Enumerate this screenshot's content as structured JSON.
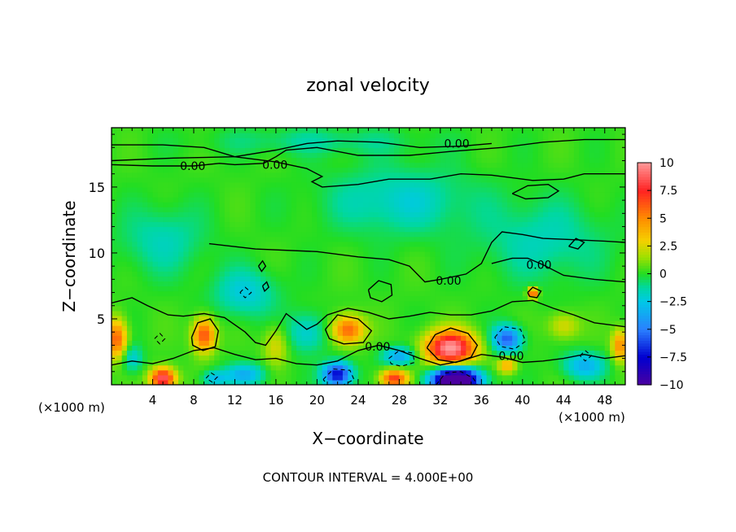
{
  "chart_data": {
    "type": "heatmap",
    "title": "zonal velocity",
    "xlabel": "X−coordinate",
    "ylabel": "Z−coordinate",
    "x_unit_left": "(×1000 m)",
    "x_unit_right": "(×1000 m)",
    "xlim": [
      0,
      50
    ],
    "ylim": [
      0,
      19.5
    ],
    "x_ticks": [
      4,
      8,
      12,
      16,
      20,
      24,
      28,
      32,
      36,
      40,
      44,
      48
    ],
    "y_ticks": [
      5,
      10,
      15
    ],
    "colorbar": {
      "range": [
        -10,
        10
      ],
      "ticks": [
        10,
        7.5,
        5,
        2.5,
        0,
        -2.5,
        -5,
        -7.5,
        -10
      ],
      "tick_labels": [
        "10",
        "7.5",
        "5",
        "2.5",
        "0",
        "−2.5",
        "−5",
        "−7.5",
        "−10"
      ],
      "colors": [
        "#ff9999",
        "#ff2222",
        "#ff7f00",
        "#f5d000",
        "#9ee000",
        "#22dd22",
        "#00d8a0",
        "#00c8e8",
        "#2a80ff",
        "#0000d0",
        "#4b00a0"
      ]
    },
    "contour_interval_label": "CONTOUR INTERVAL =  4.000E+00",
    "contour_labels": [
      "0.00",
      "0.00",
      "0.00",
      "0.00",
      "0.00",
      "0.00",
      "0.00"
    ],
    "background_value": 0.2,
    "features": [
      {
        "x": 33,
        "z": 2.8,
        "value": 10,
        "sx": 2.4,
        "sz": 1.3
      },
      {
        "x": 33.5,
        "z": 0.4,
        "value": -15,
        "sx": 2.2,
        "sz": 0.9
      },
      {
        "x": 23,
        "z": 4.2,
        "value": 6,
        "sx": 1.6,
        "sz": 1.1
      },
      {
        "x": 9,
        "z": 3.8,
        "value": 6.5,
        "sx": 1.1,
        "sz": 1.3
      },
      {
        "x": 5,
        "z": 0.5,
        "value": 9,
        "sx": 1.2,
        "sz": 0.8
      },
      {
        "x": 0.5,
        "z": 3.5,
        "value": 6,
        "sx": 1.0,
        "sz": 1.5
      },
      {
        "x": 27.5,
        "z": 0.5,
        "value": 7,
        "sx": 1.3,
        "sz": 0.7
      },
      {
        "x": 22,
        "z": 0.8,
        "value": -8,
        "sx": 1.4,
        "sz": 0.9
      },
      {
        "x": 38.5,
        "z": 3.5,
        "value": -6,
        "sx": 1.4,
        "sz": 1.0
      },
      {
        "x": 28,
        "z": 2.2,
        "value": -4,
        "sx": 1.6,
        "sz": 0.7
      },
      {
        "x": 41,
        "z": 7,
        "value": 7,
        "sx": 0.5,
        "sz": 0.4
      },
      {
        "x": 49.5,
        "z": 3,
        "value": 5,
        "sx": 0.8,
        "sz": 1.2
      },
      {
        "x": 13,
        "z": 0.8,
        "value": -3.5,
        "sx": 2.0,
        "sz": 0.8
      },
      {
        "x": 46,
        "z": 1.5,
        "value": -3.5,
        "sx": 2.0,
        "sz": 1.0
      },
      {
        "x": 10,
        "z": 0.5,
        "value": -3,
        "sx": 1.2,
        "sz": 0.6
      },
      {
        "x": 19,
        "z": 4,
        "value": -2.5,
        "sx": 2.0,
        "sz": 1.5
      },
      {
        "x": 13,
        "z": 7,
        "value": -2.5,
        "sx": 3.0,
        "sz": 1.8
      },
      {
        "x": 5,
        "z": 11,
        "value": -1.8,
        "sx": 4.0,
        "sz": 2.5
      },
      {
        "x": 28,
        "z": 14,
        "value": -2.2,
        "sx": 7.0,
        "sz": 2.5
      },
      {
        "x": 42,
        "z": 11,
        "value": -1.8,
        "sx": 6.0,
        "sz": 3.0
      },
      {
        "x": 20,
        "z": 18.5,
        "value": -1.3,
        "sx": 10.0,
        "sz": 1.0
      },
      {
        "x": 2,
        "z": 2,
        "value": -2.5,
        "sx": 1.0,
        "sz": 1.0
      },
      {
        "x": 38.5,
        "z": 1.5,
        "value": 4,
        "sx": 0.9,
        "sz": 0.6
      },
      {
        "x": 16,
        "z": 3,
        "value": 2.5,
        "sx": 1.2,
        "sz": 1.5
      },
      {
        "x": 44,
        "z": 4.5,
        "value": 2.5,
        "sx": 1.5,
        "sz": 1.0
      }
    ],
    "zero_contours": [
      [
        [
          0,
          16.7
        ],
        [
          4,
          16.6
        ],
        [
          8,
          16.6
        ],
        [
          10.5,
          16.8
        ],
        [
          12,
          16.7
        ],
        [
          14.8,
          16.8
        ],
        [
          16,
          17.3
        ],
        [
          17,
          17.8
        ],
        [
          20,
          18.0
        ],
        [
          24,
          17.4
        ],
        [
          29,
          17.4
        ],
        [
          33,
          17.7
        ],
        [
          38,
          18.0
        ],
        [
          42,
          18.4
        ],
        [
          46,
          18.6
        ],
        [
          50,
          18.6
        ]
      ],
      [
        [
          0,
          18.2
        ],
        [
          5,
          18.2
        ],
        [
          9,
          18.0
        ],
        [
          12,
          17.3
        ],
        [
          16,
          16.9
        ],
        [
          19,
          16.4
        ],
        [
          20.5,
          15.8
        ],
        [
          19.5,
          15.4
        ],
        [
          20.5,
          15.0
        ],
        [
          24,
          15.2
        ],
        [
          27,
          15.6
        ],
        [
          31,
          15.6
        ],
        [
          34,
          16.0
        ],
        [
          37,
          15.9
        ],
        [
          41,
          15.5
        ],
        [
          44,
          15.6
        ],
        [
          46,
          16.0
        ],
        [
          50,
          16.0
        ]
      ],
      [
        [
          0,
          17.0
        ],
        [
          6,
          17.2
        ],
        [
          12,
          17.3
        ],
        [
          16,
          17.8
        ],
        [
          19,
          18.3
        ],
        [
          22,
          18.5
        ],
        [
          26,
          18.4
        ],
        [
          30,
          18.0
        ],
        [
          34,
          18.1
        ],
        [
          37,
          18.3
        ]
      ],
      [
        [
          9.5,
          10.7
        ],
        [
          14,
          10.3
        ],
        [
          20,
          10.1
        ],
        [
          24,
          9.7
        ],
        [
          27,
          9.5
        ],
        [
          29,
          9.0
        ],
        [
          30,
          8.2
        ],
        [
          30.5,
          7.8
        ],
        [
          32,
          8.0
        ],
        [
          34.5,
          8.4
        ],
        [
          36,
          9.2
        ],
        [
          37,
          10.8
        ],
        [
          38,
          11.6
        ],
        [
          40,
          11.4
        ],
        [
          42,
          11.1
        ],
        [
          45,
          11.0
        ],
        [
          48,
          10.9
        ],
        [
          50,
          10.8
        ]
      ],
      [
        [
          37,
          9.2
        ],
        [
          39,
          9.6
        ],
        [
          40.5,
          9.6
        ],
        [
          42,
          9.1
        ],
        [
          44,
          8.3
        ],
        [
          47,
          8.0
        ],
        [
          50,
          7.8
        ]
      ],
      [
        [
          0,
          6.2
        ],
        [
          2,
          6.6
        ],
        [
          3.5,
          6.0
        ],
        [
          5.5,
          5.3
        ],
        [
          7,
          5.2
        ],
        [
          9,
          5.4
        ],
        [
          11,
          5.1
        ],
        [
          13,
          4.0
        ],
        [
          14,
          3.2
        ],
        [
          15,
          3.0
        ],
        [
          16,
          4.1
        ],
        [
          17,
          5.4
        ],
        [
          18,
          4.8
        ],
        [
          19,
          4.2
        ],
        [
          20,
          4.6
        ],
        [
          21,
          5.3
        ],
        [
          23,
          5.8
        ],
        [
          25,
          5.5
        ],
        [
          27,
          5.0
        ],
        [
          29,
          5.2
        ],
        [
          31,
          5.5
        ],
        [
          33,
          5.3
        ],
        [
          35,
          5.3
        ],
        [
          37,
          5.6
        ],
        [
          39,
          6.3
        ],
        [
          41,
          6.4
        ],
        [
          43,
          5.8
        ],
        [
          45,
          5.3
        ],
        [
          47,
          4.7
        ],
        [
          50,
          4.4
        ]
      ],
      [
        [
          0,
          1.5
        ],
        [
          2,
          1.8
        ],
        [
          4,
          1.6
        ],
        [
          6,
          2.0
        ],
        [
          8,
          2.6
        ],
        [
          10,
          2.8
        ],
        [
          12,
          2.3
        ],
        [
          14,
          1.9
        ],
        [
          16,
          2.0
        ],
        [
          18,
          1.6
        ],
        [
          20,
          1.5
        ],
        [
          22,
          1.8
        ],
        [
          24,
          2.6
        ],
        [
          26,
          3.0
        ],
        [
          28,
          2.6
        ],
        [
          30,
          2.0
        ],
        [
          32,
          1.5
        ],
        [
          34,
          1.8
        ],
        [
          36,
          2.3
        ],
        [
          38,
          2.1
        ],
        [
          40,
          1.7
        ],
        [
          42,
          1.8
        ],
        [
          44,
          2.0
        ],
        [
          46,
          2.3
        ],
        [
          48,
          2.0
        ],
        [
          50,
          2.2
        ]
      ],
      [
        [
          30.7,
          2.8
        ],
        [
          31.5,
          3.8
        ],
        [
          33,
          4.3
        ],
        [
          34.7,
          3.9
        ],
        [
          35.6,
          3.0
        ],
        [
          35,
          2.1
        ],
        [
          33.5,
          1.7
        ],
        [
          31.8,
          1.9
        ],
        [
          30.7,
          2.8
        ]
      ],
      [
        [
          20.8,
          4.2
        ],
        [
          22,
          5.3
        ],
        [
          24,
          5.0
        ],
        [
          25.3,
          4.1
        ],
        [
          24.5,
          3.2
        ],
        [
          22.6,
          3.1
        ],
        [
          21.2,
          3.5
        ],
        [
          20.8,
          4.2
        ]
      ],
      [
        [
          7.8,
          3.6
        ],
        [
          8.4,
          4.7
        ],
        [
          9.6,
          5.0
        ],
        [
          10.4,
          4.1
        ],
        [
          10.1,
          2.9
        ],
        [
          8.9,
          2.6
        ],
        [
          7.9,
          3.0
        ],
        [
          7.8,
          3.6
        ]
      ],
      [
        [
          25,
          7.2
        ],
        [
          26,
          7.9
        ],
        [
          27.2,
          7.6
        ],
        [
          27.3,
          6.8
        ],
        [
          26.3,
          6.3
        ],
        [
          25.2,
          6.6
        ],
        [
          25,
          7.2
        ]
      ],
      [
        [
          40.5,
          7.0
        ],
        [
          41,
          7.4
        ],
        [
          41.8,
          7.1
        ],
        [
          41.4,
          6.6
        ],
        [
          40.7,
          6.7
        ],
        [
          40.5,
          7.0
        ]
      ],
      [
        [
          39,
          14.5
        ],
        [
          40.5,
          15.1
        ],
        [
          42.5,
          15.2
        ],
        [
          43.5,
          14.7
        ],
        [
          42.5,
          14.2
        ],
        [
          40.3,
          14.1
        ],
        [
          39,
          14.5
        ]
      ],
      [
        [
          44.5,
          10.5
        ],
        [
          45.2,
          11.1
        ],
        [
          46,
          10.8
        ],
        [
          45.4,
          10.3
        ],
        [
          44.5,
          10.5
        ]
      ],
      [
        [
          14.3,
          9.0
        ],
        [
          14.7,
          9.4
        ],
        [
          15.0,
          9.0
        ],
        [
          14.6,
          8.6
        ],
        [
          14.3,
          9.0
        ]
      ],
      [
        [
          14.7,
          7.5
        ],
        [
          15.1,
          7.8
        ],
        [
          15.3,
          7.4
        ],
        [
          14.9,
          7.1
        ],
        [
          14.7,
          7.5
        ]
      ]
    ],
    "negative_contours": [
      [
        [
          31.6,
          0.0
        ],
        [
          32.5,
          0.9
        ],
        [
          34.0,
          1.0
        ],
        [
          35.2,
          0.5
        ],
        [
          35.6,
          0.0
        ]
      ],
      [
        [
          20.6,
          0.4
        ],
        [
          21.6,
          1.2
        ],
        [
          23.2,
          1.1
        ],
        [
          23.6,
          0.4
        ],
        [
          22.6,
          0.0
        ],
        [
          21.0,
          0.0
        ],
        [
          20.6,
          0.4
        ]
      ],
      [
        [
          37.3,
          3.6
        ],
        [
          38.2,
          4.4
        ],
        [
          39.8,
          4.2
        ],
        [
          40.3,
          3.3
        ],
        [
          39.2,
          2.7
        ],
        [
          37.9,
          2.9
        ],
        [
          37.3,
          3.6
        ]
      ],
      [
        [
          27.0,
          2.0
        ],
        [
          28.0,
          2.6
        ],
        [
          29.3,
          2.4
        ],
        [
          29.5,
          1.7
        ],
        [
          28.2,
          1.4
        ],
        [
          27.2,
          1.6
        ],
        [
          27.0,
          2.0
        ]
      ],
      [
        [
          12.5,
          7.0
        ],
        [
          13.0,
          7.4
        ],
        [
          13.6,
          7.0
        ],
        [
          13.0,
          6.6
        ],
        [
          12.5,
          7.0
        ]
      ],
      [
        [
          45.6,
          2.2
        ],
        [
          46.1,
          2.6
        ],
        [
          46.7,
          2.2
        ],
        [
          46.1,
          1.8
        ],
        [
          45.6,
          2.2
        ]
      ],
      [
        [
          9.2,
          0.5
        ],
        [
          9.7,
          0.9
        ],
        [
          10.3,
          0.6
        ],
        [
          9.8,
          0.2
        ],
        [
          9.2,
          0.5
        ]
      ],
      [
        [
          4.2,
          3.5
        ],
        [
          4.7,
          3.9
        ],
        [
          5.2,
          3.5
        ],
        [
          4.7,
          3.1
        ],
        [
          4.2,
          3.5
        ]
      ]
    ],
    "contour_label_positions": [
      [
        7.9,
        16.6
      ],
      [
        15.9,
        16.7
      ],
      [
        33.6,
        18.3
      ],
      [
        32.8,
        7.9
      ],
      [
        41.6,
        9.1
      ],
      [
        25.9,
        2.9
      ],
      [
        38.9,
        2.2
      ]
    ]
  }
}
